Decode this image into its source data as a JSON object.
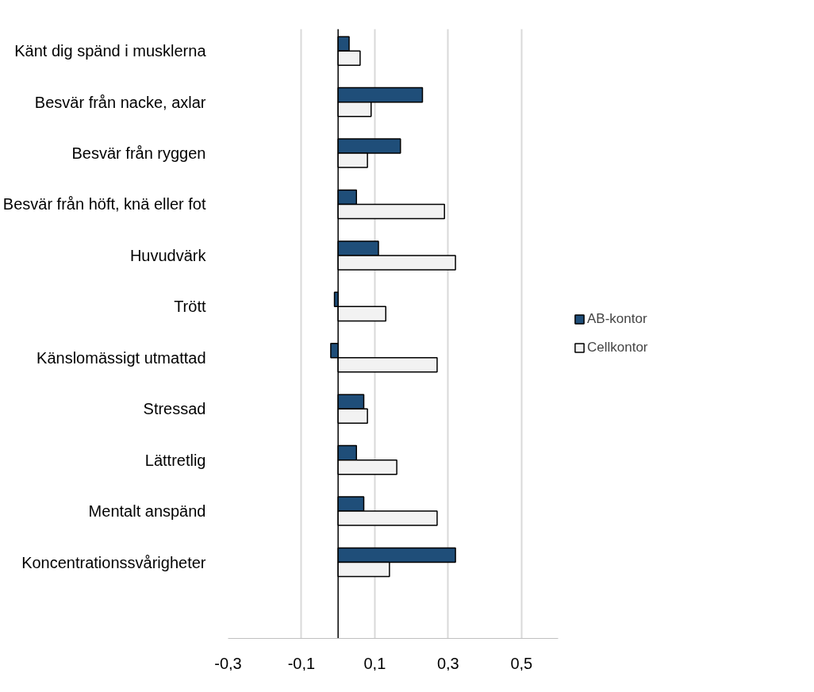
{
  "chart_data": {
    "type": "bar",
    "orientation": "horizontal",
    "categories": [
      "Känt dig spänd i musklerna",
      "Besvär från nacke, axlar",
      "Besvär från ryggen",
      "Besvär från höft, knä eller fot",
      "Huvudvärk",
      "Trött",
      "Känslomässigt utmattad",
      "Stressad",
      "Lättretlig",
      "Mentalt anspänd",
      "Koncentrationssvårigheter"
    ],
    "series": [
      {
        "name": "AB-kontor",
        "color": "#1f4e79",
        "values": [
          0.03,
          0.23,
          0.17,
          0.05,
          0.11,
          -0.01,
          -0.02,
          0.07,
          0.05,
          0.07,
          0.32
        ]
      },
      {
        "name": "Cellkontor",
        "color": "#f2f2f2",
        "values": [
          0.06,
          0.09,
          0.08,
          0.29,
          0.32,
          0.13,
          0.27,
          0.08,
          0.16,
          0.27,
          0.14
        ]
      }
    ],
    "xlim": [
      -0.3,
      0.6
    ],
    "xticks": [
      {
        "value": -0.3,
        "label": "-0,3"
      },
      {
        "value": -0.1,
        "label": "-0,1"
      },
      {
        "value": 0.1,
        "label": "0,1"
      },
      {
        "value": 0.3,
        "label": "0,3"
      },
      {
        "value": 0.5,
        "label": "0,5"
      }
    ],
    "grid": "x",
    "legend": "right"
  }
}
